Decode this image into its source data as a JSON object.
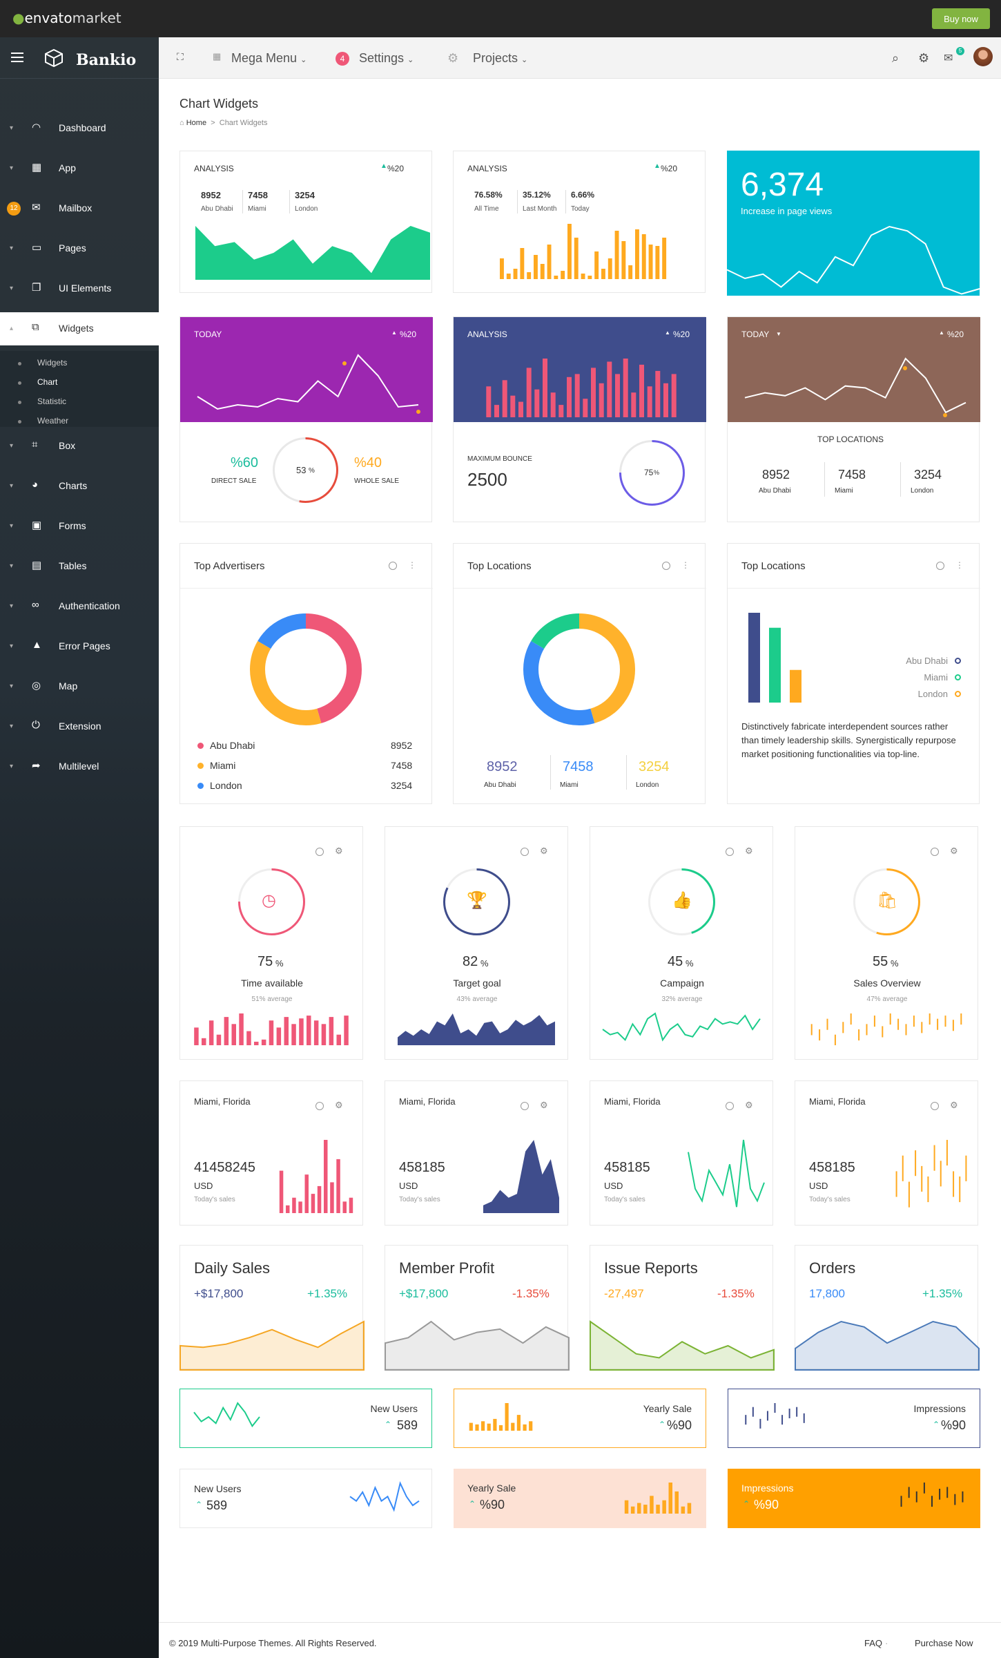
{
  "topbar": {
    "brand_a": "envato",
    "brand_b": "market",
    "buy": "Buy now"
  },
  "sidebar": {
    "logo": "Bankio",
    "items": [
      {
        "label": "Dashboard",
        "icon": "dashboard-icon"
      },
      {
        "label": "App",
        "icon": "grid-icon"
      },
      {
        "label": "Mailbox",
        "icon": "mail-icon",
        "badge": "12"
      },
      {
        "label": "Pages",
        "icon": "monitor-icon"
      },
      {
        "label": "UI Elements",
        "icon": "copy-icon"
      },
      {
        "label": "Widgets",
        "icon": "widgets-icon"
      },
      {
        "label": "Box",
        "icon": "box-icon"
      },
      {
        "label": "Charts",
        "icon": "pie-chart-icon"
      },
      {
        "label": "Forms",
        "icon": "form-icon"
      },
      {
        "label": "Tables",
        "icon": "table-icon"
      },
      {
        "label": "Authentication",
        "icon": "infinity-icon"
      },
      {
        "label": "Error Pages",
        "icon": "warning-icon"
      },
      {
        "label": "Map",
        "icon": "map-icon"
      },
      {
        "label": "Extension",
        "icon": "plug-icon"
      },
      {
        "label": "Multilevel",
        "icon": "share-icon"
      }
    ],
    "sub": [
      "Widgets",
      "Chart",
      "Statistic",
      "Weather"
    ]
  },
  "header": {
    "mega": "Mega Menu",
    "settings": "Settings",
    "settings_badge": "4",
    "projects": "Projects",
    "mail_badge": "5"
  },
  "page": {
    "title": "Chart Widgets",
    "home": "Home",
    "sep": ">",
    "current": "Chart Widgets"
  },
  "row1": {
    "a": {
      "label": "ANALYSIS",
      "change": "%20",
      "stats": [
        [
          "8952",
          "Abu Dhabi"
        ],
        [
          "7458",
          "Miami"
        ],
        [
          "3254",
          "London"
        ]
      ],
      "area": [
        40,
        25,
        28,
        15,
        20,
        30,
        12,
        25,
        20,
        5,
        30,
        40,
        35
      ]
    },
    "b": {
      "label": "ANALYSIS",
      "change": "%20",
      "stats": [
        [
          "76.58%",
          "All Time"
        ],
        [
          "35.12%",
          "Last Month"
        ],
        [
          "6.66%",
          "Today"
        ]
      ],
      "bars": [
        30,
        8,
        15,
        45,
        10,
        35,
        22,
        50,
        5,
        12,
        80,
        60,
        8,
        5,
        40,
        15,
        30,
        70,
        55,
        20,
        72,
        65,
        50,
        48,
        60
      ]
    },
    "c": {
      "value": "6,374",
      "sub": "Increase in page views",
      "line": [
        30,
        20,
        25,
        10,
        28,
        15,
        45,
        35,
        70,
        80,
        75,
        60,
        10,
        2,
        8
      ]
    }
  },
  "row2": {
    "a": {
      "label": "TODAY",
      "change": "%20",
      "line": [
        20,
        8,
        12,
        10,
        18,
        15,
        35,
        20,
        60,
        40,
        10,
        12
      ],
      "pct1": "%60",
      "pct1_label": "DIRECT SALE",
      "gauge": "53",
      "gauge_unit": "%",
      "pct2": "%40",
      "pct2_label": "WHOLE SALE"
    },
    "b": {
      "label": "ANALYSIS",
      "change": "%20",
      "bars": [
        50,
        20,
        60,
        35,
        25,
        80,
        45,
        95,
        40,
        20,
        65,
        70,
        30,
        80,
        55,
        90,
        70,
        95,
        40,
        85,
        50,
        75,
        55,
        70
      ],
      "text": "MAXIMUM BOUNCE",
      "value": "2500",
      "ring": "75",
      "ring_unit": "%"
    },
    "c": {
      "label": "TODAY",
      "change": "%20",
      "line": [
        20,
        25,
        22,
        30,
        18,
        32,
        30,
        20,
        60,
        40,
        5,
        15
      ],
      "title": "TOP LOCATIONS",
      "stats": [
        [
          "8952",
          "Abu Dhabi"
        ],
        [
          "7458",
          "Miami"
        ],
        [
          "3254",
          "London"
        ]
      ]
    }
  },
  "row3": {
    "a": {
      "title": "Top Advertisers",
      "slices": [
        {
          "name": "Abu Dhabi",
          "value": 8952,
          "color": "#ef5777"
        },
        {
          "name": "Miami",
          "value": 7458,
          "color": "#ffb22b"
        },
        {
          "name": "London",
          "value": 3254,
          "color": "#398bf7"
        }
      ],
      "legend": [
        [
          "Abu Dhabi",
          "8952"
        ],
        [
          "Miami",
          "7458"
        ],
        [
          "London",
          "3254"
        ]
      ]
    },
    "b": {
      "title": "Top Locations",
      "slices": [
        {
          "name": "8952",
          "value": 8952,
          "color": "#ffb22b"
        },
        {
          "name": "7458",
          "value": 7458,
          "color": "#398bf7"
        },
        {
          "name": "3254",
          "value": 3254,
          "color": "#1ccc8b"
        }
      ],
      "stats": [
        [
          "8952",
          "Abu Dhabi",
          "#5e62a8"
        ],
        [
          "7458",
          "Miami",
          "#398bf7"
        ],
        [
          "3254",
          "London",
          "#f4d03f"
        ]
      ]
    },
    "c": {
      "title": "Top Locations",
      "bars": [
        {
          "name": "Abu Dhabi",
          "value": 8952,
          "color": "#3f4d8c"
        },
        {
          "name": "Miami",
          "value": 7458,
          "color": "#1ccc8b"
        },
        {
          "name": "London",
          "value": 3254,
          "color": "#ffa91f"
        }
      ],
      "text": "Distinctively fabricate interdependent sources rather than timely leadership skills. Synergistically repurpose market positioning functionalities via top-line."
    }
  },
  "row4": [
    {
      "pct": "75",
      "unit": "%",
      "title": "Time available",
      "avg": "51% average",
      "color": "#ef5777",
      "icon": "clock-icon",
      "type": "bar",
      "data": [
        25,
        10,
        35,
        15,
        40,
        30,
        45,
        20,
        5,
        8,
        35,
        25,
        40,
        30,
        38,
        42,
        35,
        30,
        40,
        15,
        42
      ]
    },
    {
      "pct": "82",
      "unit": "%",
      "title": "Target goal",
      "avg": "43% average",
      "color": "#3f4d8c",
      "icon": "trophy-icon",
      "type": "area",
      "data": [
        10,
        18,
        12,
        20,
        14,
        30,
        25,
        40,
        15,
        20,
        12,
        28,
        30,
        15,
        20,
        32,
        25,
        30,
        38,
        25,
        30
      ]
    },
    {
      "pct": "45",
      "unit": "%",
      "title": "Campaign",
      "avg": "32% average",
      "color": "#1ccc8b",
      "icon": "thumbs-up-icon",
      "type": "line",
      "data": [
        15,
        10,
        12,
        5,
        20,
        10,
        25,
        30,
        5,
        15,
        20,
        10,
        8,
        18,
        15,
        25,
        20,
        22,
        20,
        28,
        15,
        25
      ]
    },
    {
      "pct": "55",
      "unit": "%",
      "title": "Sales Overview",
      "avg": "47% average",
      "color": "#ffa91f",
      "icon": "shopping-bag-icon",
      "type": "candle",
      "data": [
        20,
        15,
        25,
        10,
        22,
        30,
        15,
        20,
        28,
        18,
        30,
        25,
        20,
        28,
        22,
        30,
        25,
        28,
        24,
        30
      ]
    }
  ],
  "row5": [
    {
      "loc": "Miami, Florida",
      "value": "41458245",
      "unit": "USD",
      "sub": "Today's sales",
      "color": "#ef5777",
      "type": "bar",
      "data": [
        55,
        10,
        20,
        15,
        50,
        25,
        35,
        95,
        40,
        70,
        15,
        20
      ]
    },
    {
      "loc": "Miami, Florida",
      "value": "458185",
      "unit": "USD",
      "sub": "Today's sales",
      "color": "#3f4d8c",
      "type": "area",
      "data": [
        10,
        15,
        30,
        20,
        25,
        80,
        95,
        50,
        70,
        20
      ]
    },
    {
      "loc": "Miami, Florida",
      "value": "458185",
      "unit": "USD",
      "sub": "Today's sales",
      "color": "#1ccc8b",
      "type": "line",
      "data": [
        50,
        20,
        10,
        35,
        25,
        15,
        40,
        5,
        60,
        20,
        10,
        25
      ]
    },
    {
      "loc": "Miami, Florida",
      "value": "458185",
      "unit": "USD",
      "sub": "Today's sales",
      "color": "#ffa91f",
      "type": "candle",
      "data": [
        40,
        55,
        30,
        60,
        45,
        35,
        65,
        50,
        70,
        40,
        35,
        55
      ]
    }
  ],
  "row6": [
    {
      "title": "Daily Sales",
      "a": "+$17,800",
      "a_color": "#3f4d8c",
      "b": "+1.35%",
      "b_color": "#1abc9c",
      "color": "#f5a623",
      "data": [
        30,
        28,
        32,
        40,
        50,
        38,
        28,
        45,
        60
      ]
    },
    {
      "title": "Member Profit",
      "a": "+$17,800",
      "a_color": "#1abc9c",
      "b": "-1.35%",
      "b_color": "#e74c3c",
      "color": "#999999",
      "data": [
        25,
        30,
        45,
        28,
        35,
        38,
        25,
        40,
        30
      ]
    },
    {
      "title": "Issue Reports",
      "a": "-27,497",
      "a_color": "#ffa91f",
      "b": "-1.35%",
      "b_color": "#e74c3c",
      "color": "#7bb334",
      "data": [
        60,
        40,
        20,
        15,
        35,
        20,
        30,
        15,
        25
      ]
    },
    {
      "title": "Orders",
      "a": "17,800",
      "a_color": "#398bf7",
      "b": "+1.35%",
      "b_color": "#1abc9c",
      "color": "#4a79b8",
      "data": [
        20,
        35,
        45,
        40,
        25,
        35,
        45,
        40,
        20
      ]
    }
  ],
  "row7": [
    {
      "title": "New Users",
      "value": "589",
      "color": "#1ccc8b",
      "type": "line",
      "data": [
        20,
        10,
        15,
        8,
        25,
        12,
        30,
        20,
        5,
        15
      ]
    },
    {
      "title": "Yearly Sale",
      "value": "%90",
      "color": "#ffa91f",
      "type": "bar",
      "data": [
        10,
        8,
        12,
        9,
        15,
        7,
        35,
        10,
        20,
        8,
        12
      ]
    },
    {
      "title": "Impressions",
      "value": "%90",
      "color": "#3f4d8c",
      "type": "candle",
      "data": [
        20,
        30,
        15,
        25,
        35,
        20,
        28,
        30,
        22
      ]
    }
  ],
  "row8": [
    {
      "title": "New Users",
      "value": "589",
      "color": "#398bf7",
      "type": "line",
      "data": [
        20,
        15,
        25,
        10,
        30,
        15,
        20,
        5,
        35,
        20,
        10,
        15
      ]
    },
    {
      "title": "Yearly Sale",
      "value": "%90",
      "color": "#ffa91f",
      "type": "bar",
      "data": [
        15,
        8,
        12,
        10,
        20,
        10,
        15,
        35,
        25,
        8,
        12
      ]
    },
    {
      "title": "Impressions",
      "value": "%90",
      "color": "#333333",
      "type": "candle",
      "data": [
        20,
        30,
        25,
        35,
        20,
        28,
        30,
        22,
        25
      ]
    }
  ],
  "footer": {
    "copy": "© 2019 Multi-Purpose Themes. All Rights Reserved.",
    "faq": "FAQ",
    "purchase": "Purchase Now"
  }
}
